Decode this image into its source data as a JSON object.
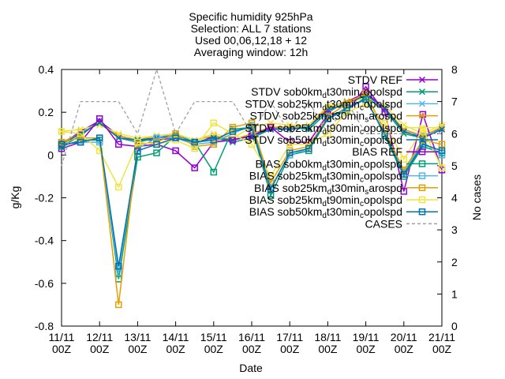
{
  "chart_data": {
    "type": "line",
    "title_lines": [
      "Specific humidity 925hPa",
      "Selection: ALL       7 stations",
      "Used 00,06,12,18 + 12",
      "Averaging window: 12h"
    ],
    "xlabel": "Date",
    "ylabel": "g/Kg",
    "y2label": "No cases",
    "ylim": [
      -0.8,
      0.4
    ],
    "y2lim": [
      0,
      8
    ],
    "xlim": [
      0,
      10
    ],
    "yticks": [
      "0.4",
      "0.2",
      "0",
      "-0.2",
      "-0.4",
      "-0.6",
      "-0.8"
    ],
    "y2ticks": [
      "8",
      "7",
      "6",
      "5",
      "4",
      "3",
      "2",
      "1",
      "0"
    ],
    "xticks": [
      {
        "date": "11/11",
        "hour": "00Z"
      },
      {
        "date": "12/11",
        "hour": "00Z"
      },
      {
        "date": "13/11",
        "hour": "00Z"
      },
      {
        "date": "14/11",
        "hour": "00Z"
      },
      {
        "date": "15/11",
        "hour": "00Z"
      },
      {
        "date": "16/11",
        "hour": "00Z"
      },
      {
        "date": "17/11",
        "hour": "00Z"
      },
      {
        "date": "18/11",
        "hour": "00Z"
      },
      {
        "date": "19/11",
        "hour": "00Z"
      },
      {
        "date": "20/11",
        "hour": "00Z"
      },
      {
        "date": "21/11",
        "hour": "00Z"
      }
    ],
    "x": [
      0,
      0.5,
      1,
      1.5,
      2,
      2.5,
      3,
      3.5,
      4,
      4.5,
      5,
      5.5,
      6,
      6.5,
      7,
      7.5,
      8,
      8.5,
      9,
      9.5,
      10
    ],
    "series": [
      {
        "name": "STDV REF",
        "color": "#9400d3",
        "marker": "x",
        "dash": "",
        "values": [
          0.05,
          0.11,
          0.16,
          0.09,
          0.07,
          0.07,
          0.08,
          0.05,
          0.09,
          0.07,
          0.09,
          0.13,
          0.12,
          0.13,
          0.22,
          0.25,
          0.29,
          0.22,
          0.11,
          0.08,
          0.13
        ]
      },
      {
        "name": "STDV sob0km_dt30min_copolspd",
        "label_text": "STDV sob0km",
        "label_sub": "d",
        "label_tail": "t30min",
        "label_sub2": "c",
        "label_end": "opolspd",
        "color": "#009e73",
        "marker": "x",
        "dash": "",
        "values": [
          0.04,
          0.09,
          0.16,
          0.08,
          0.06,
          0.08,
          0.09,
          0.06,
          0.08,
          0.06,
          0.08,
          0.12,
          0.13,
          0.12,
          0.2,
          0.25,
          0.27,
          0.21,
          0.1,
          0.08,
          0.12
        ]
      },
      {
        "name": "STDV sob25km_dt30min_copolspd",
        "label_text": "STDV sob25km",
        "label_sub": "d",
        "label_tail": "t30min",
        "label_sub2": "c",
        "label_end": "opolspd",
        "color": "#56b4e9",
        "marker": "x",
        "dash": "",
        "values": [
          0.05,
          0.1,
          0.15,
          0.08,
          0.07,
          0.08,
          0.1,
          0.06,
          0.08,
          0.07,
          0.09,
          0.12,
          0.13,
          0.13,
          0.21,
          0.24,
          0.28,
          0.22,
          0.11,
          0.09,
          0.12
        ]
      },
      {
        "name": "STDV sob25km_dt30min_sarospd",
        "label_text": "STDV sob25km",
        "label_sub": "d",
        "label_tail": "t30min",
        "label_sub2": "s",
        "label_end": "arospd",
        "color": "#e69f00",
        "marker": "x",
        "dash": "",
        "values": [
          0.06,
          0.1,
          0.15,
          0.09,
          0.07,
          0.09,
          0.1,
          0.07,
          0.09,
          0.07,
          0.1,
          0.13,
          0.13,
          0.14,
          0.22,
          0.25,
          0.28,
          0.22,
          0.12,
          0.09,
          0.13
        ]
      },
      {
        "name": "STDV sob25km_dt90min_copolspd",
        "label_text": "STDV sob25km",
        "label_sub": "d",
        "label_tail": "t90min",
        "label_sub2": "c",
        "label_end": "opolspd",
        "color": "#f0e442",
        "marker": "x",
        "dash": "",
        "values": [
          0.11,
          0.12,
          0.14,
          0.1,
          0.08,
          0.09,
          0.1,
          0.07,
          0.1,
          0.08,
          0.13,
          0.15,
          0.14,
          0.14,
          0.23,
          0.24,
          0.27,
          0.23,
          0.14,
          0.1,
          0.14
        ]
      },
      {
        "name": "STDV sob50km_dt30min_copolspd",
        "label_text": "STDV sob50km",
        "label_sub": "d",
        "label_tail": "t30min",
        "label_sub2": "c",
        "label_end": "opolspd",
        "color": "#0072b2",
        "marker": "x",
        "dash": "",
        "values": [
          0.05,
          0.1,
          0.15,
          0.08,
          0.07,
          0.08,
          0.09,
          0.06,
          0.08,
          0.07,
          0.09,
          0.12,
          0.12,
          0.13,
          0.21,
          0.24,
          0.28,
          0.22,
          0.11,
          0.08,
          0.12
        ]
      },
      {
        "name": "BIAS REF",
        "color": "#9400d3",
        "marker": "square",
        "dash": "",
        "values": [
          0.03,
          0.06,
          0.17,
          0.05,
          0.04,
          0.05,
          0.02,
          -0.06,
          0.06,
          0.07,
          0.09,
          0.13,
          0.06,
          0.06,
          0.19,
          0.2,
          0.32,
          0.2,
          -0.17,
          0.19,
          -0.07
        ]
      },
      {
        "name": "BIAS sob0km_dt30min_copolspd",
        "label_text": "BIAS sob0km",
        "label_sub": "d",
        "label_tail": "t30min",
        "label_sub2": "c",
        "label_end": "opolspd",
        "color": "#009e73",
        "marker": "square",
        "dash": "",
        "values": [
          0.04,
          0.07,
          0.07,
          -0.58,
          -0.01,
          0.01,
          0.09,
          0.06,
          -0.08,
          0.12,
          0.13,
          -0.19,
          0.0,
          0.02,
          0.17,
          0.21,
          0.27,
          0.09,
          -0.1,
          0.04,
          0.01
        ]
      },
      {
        "name": "BIAS sob25km_dt30min_copolspd",
        "label_text": "BIAS sob25km",
        "label_sub": "d",
        "label_tail": "t30min",
        "label_sub2": "c",
        "label_end": "opolspd",
        "color": "#56b4e9",
        "marker": "square",
        "dash": "",
        "values": [
          0.05,
          0.06,
          0.06,
          -0.55,
          0.03,
          0.08,
          0.08,
          0.05,
          0.06,
          0.1,
          0.14,
          -0.15,
          0.0,
          0.03,
          0.17,
          0.22,
          0.26,
          0.1,
          -0.08,
          0.06,
          0.0
        ]
      },
      {
        "name": "BIAS sob25km_dt30min_sarospd",
        "label_text": "BIAS sob25km",
        "label_sub": "d",
        "label_tail": "t30min",
        "label_sub2": "s",
        "label_end": "arospd",
        "color": "#e69f00",
        "marker": "square",
        "dash": "",
        "values": [
          0.06,
          0.08,
          0.08,
          -0.7,
          0.05,
          0.06,
          0.1,
          0.04,
          0.05,
          0.13,
          0.15,
          -0.13,
          0.02,
          0.04,
          0.18,
          0.24,
          0.29,
          0.11,
          -0.07,
          0.07,
          0.05
        ]
      },
      {
        "name": "BIAS sob25km_dt90min_copolspd",
        "label_text": "BIAS sob25km",
        "label_sub": "d",
        "label_tail": "t90min",
        "label_sub2": "c",
        "label_end": "opolspd",
        "color": "#f0e442",
        "marker": "square",
        "dash": "",
        "values": [
          0.11,
          0.1,
          0.02,
          -0.15,
          0.06,
          0.05,
          0.07,
          0.03,
          0.15,
          0.1,
          0.05,
          -0.1,
          0.05,
          0.05,
          0.1,
          0.2,
          0.24,
          0.15,
          -0.02,
          0.12,
          -0.06
        ]
      },
      {
        "name": "BIAS sob50km_dt30min_copolspd",
        "label_text": "BIAS sob50km",
        "label_sub": "d",
        "label_tail": "t30min",
        "label_sub2": "c",
        "label_end": "opolspd",
        "color": "#0072b2",
        "marker": "square",
        "dash": "",
        "values": [
          0.05,
          0.06,
          0.08,
          -0.52,
          0.02,
          0.05,
          0.08,
          0.06,
          0.07,
          0.11,
          0.13,
          -0.16,
          0.01,
          0.03,
          0.17,
          0.22,
          0.26,
          0.1,
          -0.09,
          0.05,
          0.02
        ]
      },
      {
        "name": "CASES",
        "color": "#a0a0a0",
        "marker": "none",
        "dash": "4,3",
        "axis": "y2",
        "values": [
          5,
          7,
          7,
          7,
          6,
          8,
          6,
          7,
          7,
          7,
          6,
          7,
          6,
          7,
          6,
          7,
          6,
          6,
          6,
          6,
          6
        ]
      }
    ]
  }
}
